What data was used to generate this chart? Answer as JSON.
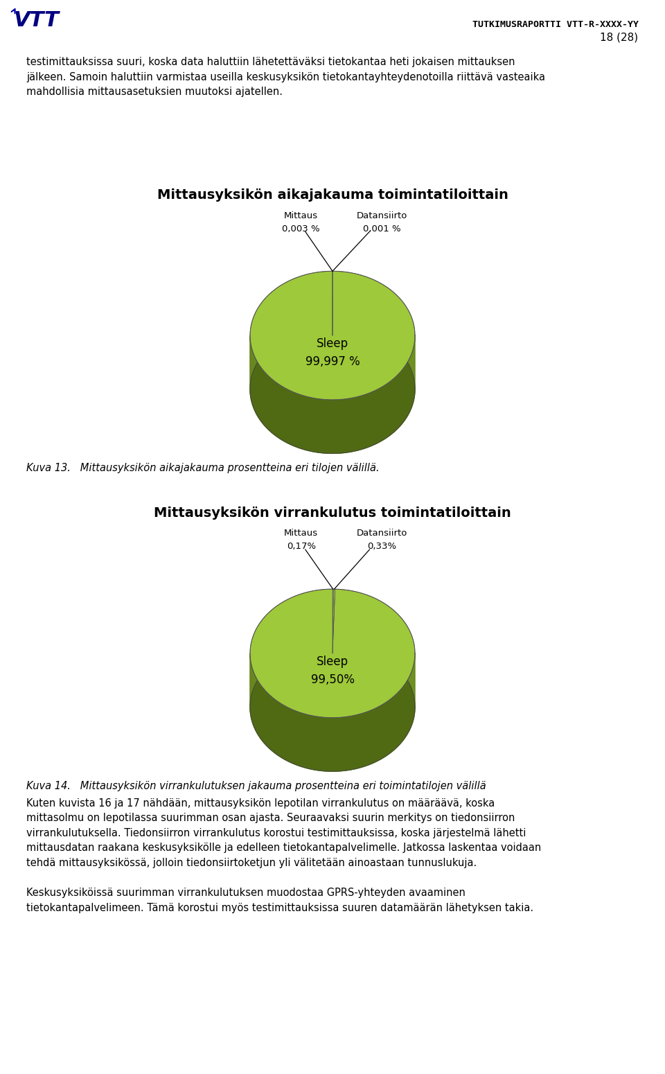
{
  "page_width": 9.6,
  "page_height": 15.5,
  "background_color": "#ffffff",
  "header_report": "TUTKIMUSRAPORTTI VTT-R-XXXX-YY",
  "header_page": "18 (28)",
  "body_text1": "testimittauksissa suuri, koska data haluttiin lähetettäväksi tietokantaa heti jokaisen mittauksen\njälkeen. Samoin haluttiin varmistaa useilla keskusyksikön tietokantayhteydenotoilla riittävä vasteaika\nmahdollisia mittausasetuksien muutoksi ajatellen.",
  "chart1_title": "Mittausyksikön aikajakauma toimintatiloittain",
  "chart1_label_names": [
    "Mittaus",
    "Datansiirto",
    "Sleep"
  ],
  "chart1_label_pcts": [
    "0,003 %",
    "0,001 %",
    "99,997 %"
  ],
  "chart1_values": [
    0.003,
    0.001,
    99.997
  ],
  "chart1_color_top": "#9ec93a",
  "chart1_color_side_light": "#7a9e28",
  "chart1_color_side_dark": "#506a14",
  "chart1_caption": "Kuva 13.   Mittausyksikön aikajakauma prosentteina eri tilojen välillä.",
  "chart2_title": "Mittausyksikön virrankulutus toimintatiloittain",
  "chart2_label_names": [
    "Mittaus",
    "Datansiirto",
    "Sleep"
  ],
  "chart2_label_pcts": [
    "0,17%",
    "0,33%",
    "99,50%"
  ],
  "chart2_values": [
    0.17,
    0.33,
    99.5
  ],
  "chart2_color_top": "#9ec93a",
  "chart2_color_side_light": "#7a9e28",
  "chart2_color_side_dark": "#506a14",
  "chart2_caption": "Kuva 14.   Mittausyksikön virrankulutuksen jakauma prosentteina eri toimintatilojen välillä",
  "body_text2": "Kuten kuvista 16 ja 17 nähdään, mittausyksikön lepotilan virrankulutus on määräävä, koska\nmittasolmu on lepotilassa suurimman osan ajasta. Seuraavaksi suurin merkitys on tiedonsiirron\nvirrankulutuksella. Tiedonsiirron virrankulutus korostui testimittauksissa, koska järjestelmä lähetti\nmittausdatan raakana keskusyksikölle ja edelleen tietokantapalvelimelle. Jatkossa laskentaa voidaan\ntehdä mittausyksikössä, jolloin tiedonsiirtoketjun yli välitetään ainoastaan tunnuslukuja.\n\nKeskusyksiköissä suurimman virrankulutuksen muodostaa GPRS-yhteyden avaaminen\ntietokantapalvelimeen. Tämä korostui myös testimittauksissa suuren datamäärän lähetyksen takia."
}
